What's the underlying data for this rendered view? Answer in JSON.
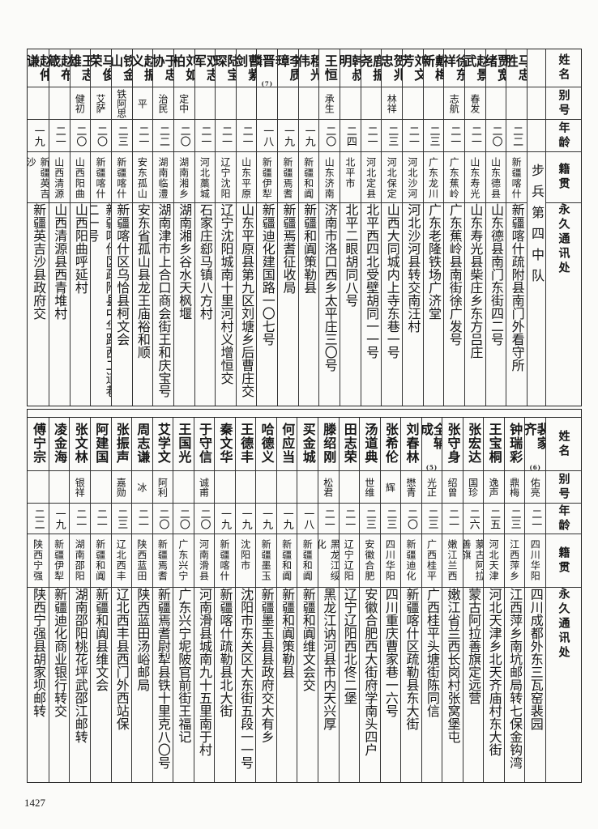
{
  "headers": {
    "name": "姓名",
    "alias": "别号",
    "age": "年龄",
    "origin": "籍贯",
    "address": "永久通讯处"
  },
  "top": {
    "unit_label": "步兵第四中队",
    "people": [
      {
        "name": "马忠胜",
        "alias": "",
        "age": "二二",
        "origin": "新疆喀什",
        "address": "新疆喀什疏附县南门外看守所"
      },
      {
        "name": "贾宽绪",
        "alias": "",
        "age": "二〇",
        "origin": "山东德县",
        "address": "山东德县南门东街四二号"
      },
      {
        "name": "赵景武",
        "alias": "春发",
        "age": "二一",
        "origin": "山东寿光",
        "address": "山东寿光县柴庄乡东方吕庄"
      },
      {
        "name": "徐东祥",
        "alias": "志航",
        "age": "二一",
        "origin": "广东蕉岭",
        "address": "广东蕉岭县南街徐广发号"
      },
      {
        "name": "戴梅新",
        "alias": "",
        "age": "二三",
        "origin": "广东龙川",
        "address": "广东老隆铁场广济堂"
      },
      {
        "name": "刘文芳",
        "alias": "",
        "age": "二一",
        "origin": "河北沙河",
        "address": "河北沙河县转交南汪村"
      },
      {
        "name": "贺兆忠",
        "alias": "林祥",
        "age": "二三",
        "origin": "河北保定",
        "address": "山西大同城内上寺东巷一号"
      },
      {
        "name": "鹿振尧",
        "alias": "",
        "age": "二一",
        "origin": "河北定县",
        "address": "北平西四北受壁胡同一一号"
      },
      {
        "name": "韩叔明",
        "alias": "",
        "age": "二四",
        "origin": "北平市",
        "address": "北平二眼胡同八号"
      },
      {
        "name": "王恒",
        "alias": "承生",
        "age": "二〇",
        "origin": "山东济南",
        "address": "济南市洛口西乡太平庄三〇号"
      },
      {
        "name": "穆光伟",
        "alias": "",
        "age": "一九",
        "origin": "新疆和阗",
        "address": "新疆和阗策勒县"
      },
      {
        "name": "李质璋",
        "alias": "",
        "age": "一九",
        "origin": "新疆焉耆",
        "address": "新疆焉耆征收局"
      },
      {
        "name": "李晋麟",
        "note": "(7)",
        "alias": "",
        "age": "一八",
        "origin": "新疆伊犁",
        "address": "新疆迪化建国路一〇七号"
      },
      {
        "name": "曹紫剑",
        "alias": "",
        "age": "二一",
        "origin": "山东平原",
        "address": "山东平原县第九区刘塘乡后曹庄交"
      },
      {
        "name": "陆宝琛",
        "alias": "",
        "age": "二一",
        "origin": "辽宁沈阳",
        "address": "辽宁沈阳城南十里河村义增恒交"
      },
      {
        "name": "双志军",
        "alias": "",
        "age": "二一",
        "origin": "河北藁城",
        "address": "石家庄郄马镇八方村"
      },
      {
        "name": "刘如柏",
        "alias": "定中",
        "age": "二〇",
        "origin": "湖南湘乡",
        "address": "湖南湘乡谷水天枫堰"
      },
      {
        "name": "于忠协",
        "alias": "治民",
        "age": "二二",
        "origin": "湖南临澧",
        "address": "湖南津市上合口商会街王和庆宝号"
      },
      {
        "name": "赵振义",
        "alias": "平",
        "age": "二一",
        "origin": "安东孤山",
        "address": "安东省孤山县龙王庙裕和顺"
      },
      {
        "name": "铁金山",
        "alias": "铁阿思",
        "age": "二三",
        "origin": "新疆喀什",
        "address": "新疆喀什区乌恰县柯文会"
      },
      {
        "name": "马俊荣",
        "alias": "艾萨",
        "age": "二〇",
        "origin": "新疆喀什",
        "address": "新疆喀什区疏附县中华路西二道巷二一号"
      },
      {
        "name": "王志雄",
        "alias": "健初",
        "age": "二〇",
        "origin": "山西阳曲",
        "address": "山西阳曲呼延村"
      },
      {
        "name": "赵布箴",
        "alias": "",
        "age": "二一",
        "origin": "山西清源",
        "address": "山西清源县西青堆村"
      },
      {
        "name": "赵仲谦",
        "alias": "",
        "age": "一九",
        "origin": "新疆英吉沙",
        "address": "新疆英吉沙县政府交"
      }
    ]
  },
  "bottom": {
    "people": [
      {
        "name": "裴家齐",
        "note": "(6)",
        "alias": "佑亮",
        "age": "二一",
        "origin": "四川华阳",
        "address": "四川成都外东三瓦窑裴园"
      },
      {
        "name": "钟瑞彩",
        "alias": "鼎梅",
        "age": "二三",
        "origin": "江西萍乡",
        "address": "江西萍乡南坑邮局转七保金钩湾"
      },
      {
        "name": "王宝桐",
        "alias": "逸声",
        "age": "二五",
        "origin": "河北天津",
        "address": "河北天津乡北天齐庙村东大街"
      },
      {
        "name": "张宏达",
        "alias": "国珍",
        "age": "二六",
        "origin": "蒙古阿拉善旗",
        "address": "蒙古阿拉善旗定远营"
      },
      {
        "name": "张守身",
        "alias": "绍曾",
        "age": "二一",
        "origin": "嫩江兰西",
        "address": "嫩江省兰西长岗村张窝堡屯"
      },
      {
        "name": "全辅成",
        "note": "(5)",
        "alias": "光正",
        "age": "二三",
        "origin": "广西桂平",
        "address": "广西桂平头塘街陈同信"
      },
      {
        "name": "刘春林",
        "alias": "懋青",
        "age": "二〇",
        "origin": "新疆迪化",
        "address": "新疆喀什区疏勒县东大街"
      },
      {
        "name": "张希伦",
        "alias": "辉",
        "age": "二三",
        "origin": "四川华阳",
        "address": "四川重庆曹家巷一六号"
      },
      {
        "name": "汤道典",
        "alias": "世维",
        "age": "二三",
        "origin": "安徽合肥",
        "address": "安徽合肥西大街府学南头四户"
      },
      {
        "name": "田志荣",
        "alias": "",
        "age": "二一",
        "origin": "辽宁辽阳",
        "address": "辽宁辽阳西北佟二堡"
      },
      {
        "name": "滕绍刚",
        "alias": "松君",
        "age": "二一",
        "origin": "黑龙江绥化",
        "address": "黑龙江讷河县市内天兴厚"
      },
      {
        "name": "买金城",
        "alias": "",
        "age": "一八",
        "origin": "新疆和阗",
        "address": "新疆和阗维文会交"
      },
      {
        "name": "何应当",
        "alias": "",
        "age": "一九",
        "origin": "新疆和阗",
        "address": "新疆和阗策勒县"
      },
      {
        "name": "哈德义",
        "alias": "",
        "age": "一九",
        "origin": "新疆墨玉",
        "address": "新疆墨玉县县政府交大有乡"
      },
      {
        "name": "王德丰",
        "alias": "",
        "age": "一九",
        "origin": "沈阳市",
        "address": "沈阳市东关区大东街五段一一号"
      },
      {
        "name": "秦文华",
        "alias": "",
        "age": "一九",
        "origin": "新疆喀什",
        "address": "新疆喀什疏勒县北大街"
      },
      {
        "name": "于守信",
        "alias": "诚甫",
        "age": "二〇",
        "origin": "河南滑县",
        "address": "河南滑县城南九十五里南于村"
      },
      {
        "name": "王国光",
        "alias": "",
        "age": "二〇",
        "origin": "广东兴宁",
        "address": "广东兴宁坭陂官前街王福记"
      },
      {
        "name": "艾学文",
        "alias": "阿利",
        "age": "二〇",
        "origin": "新疆焉耆",
        "address": "新疆焉耆尉犁县铁十里克八〇号"
      },
      {
        "name": "周志谦",
        "alias": "冰",
        "age": "二一",
        "origin": "陕西蓝田",
        "address": "陕西蓝田汤峪邮局"
      },
      {
        "name": "张振声",
        "alias": "嘉勋",
        "age": "二三",
        "origin": "辽北西丰",
        "address": "辽北西丰县西门外西站保"
      },
      {
        "name": "阿建国",
        "alias": "",
        "age": "二一",
        "origin": "新疆和阗",
        "address": "新疆和阗县维文会"
      },
      {
        "name": "张文林",
        "alias": "银祥",
        "age": "二一",
        "origin": "湖南邵阳",
        "address": "湖南邵阳桃花坪武邵江邮转"
      },
      {
        "name": "凌金海",
        "alias": "",
        "age": "一九",
        "origin": "新疆伊犁",
        "address": "新疆迪化商业银行转交"
      },
      {
        "name": "傅宁宗",
        "alias": "",
        "age": "二二",
        "origin": "陕西宁强",
        "address": "陕西宁强县胡家坝邮转"
      }
    ]
  },
  "page_number": "1427"
}
